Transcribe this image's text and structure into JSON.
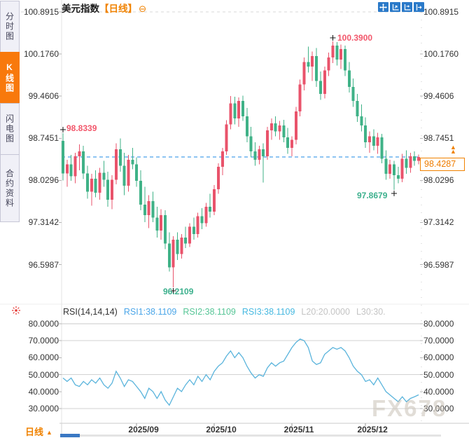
{
  "sidebar": {
    "items": [
      {
        "label": "分时图",
        "selected": false
      },
      {
        "label": "K线图",
        "selected": true
      },
      {
        "label": "闪电图",
        "selected": false
      },
      {
        "label": "合约资料",
        "selected": false
      }
    ]
  },
  "header": {
    "title": "美元指数",
    "timeframe_tag": "【日线】",
    "collapse_icon": "⊖"
  },
  "price_axis": {
    "current_price": "98.4287"
  },
  "annotations": {
    "left_high": "98.8339",
    "peak_high": "100.3900",
    "bottom_low": "96.2109",
    "right_low": "97.8679"
  },
  "rsi_legend": {
    "name": "RSI(14,14,14)",
    "rsi1": "RSI1:38.1109",
    "rsi2": "RSI2:38.1109",
    "rsi3": "RSI3:38.1109",
    "l20": "L20:20.0000",
    "l30": "L30:30."
  },
  "bottom_bar": {
    "timeframe_tab": "日线",
    "tab_arrow": "▲",
    "watermark": "FX678"
  },
  "colors": {
    "up": "#e9536b",
    "down": "#3fb287",
    "accent": "#f08200",
    "price_line": "#1e88e5",
    "rsi_line": "#5ab4dc",
    "grid": "#d2d2d2",
    "axis_text": "#333333"
  },
  "chart_data": [
    {
      "type": "candlestick",
      "title": "美元指数 日线 (US Dollar Index, daily)",
      "y_ticks": [
        100.8915,
        100.176,
        99.4606,
        98.7451,
        98.0296,
        97.3142,
        96.5987
      ],
      "ylim": [
        96.2109,
        100.8915
      ],
      "x_tick_labels": [
        "2025/09",
        "2025/10",
        "2025/11",
        "2025/12"
      ],
      "x_tick_indices": [
        18,
        37,
        56,
        74
      ],
      "current_price": 98.4287,
      "markers": [
        {
          "index": 0,
          "price": 98.8339,
          "side": "high"
        },
        {
          "index": 66,
          "price": 100.39,
          "side": "high"
        },
        {
          "index": 27,
          "price": 96.2109,
          "side": "low"
        },
        {
          "index": 81,
          "price": 97.8679,
          "side": "low"
        }
      ],
      "ohlc": [
        [
          98.7,
          98.8339,
          98.03,
          98.15
        ],
        [
          98.15,
          98.38,
          97.92,
          98.3
        ],
        [
          98.3,
          98.46,
          98.02,
          98.1
        ],
        [
          98.1,
          98.5,
          97.98,
          98.44
        ],
        [
          98.44,
          98.64,
          98.2,
          98.52
        ],
        [
          98.52,
          98.62,
          98.05,
          98.15
        ],
        [
          98.15,
          98.28,
          97.72,
          97.84
        ],
        [
          97.84,
          98.14,
          97.6,
          98.06
        ],
        [
          98.06,
          98.2,
          97.74,
          97.82
        ],
        [
          97.82,
          98.24,
          97.7,
          98.16
        ],
        [
          98.16,
          98.36,
          97.92,
          98.04
        ],
        [
          98.04,
          98.18,
          97.58,
          97.7
        ],
        [
          97.7,
          98.12,
          97.54,
          98.04
        ],
        [
          98.04,
          98.66,
          97.96,
          98.56
        ],
        [
          98.56,
          98.74,
          98.18,
          98.28
        ],
        [
          98.28,
          98.5,
          97.78,
          97.94
        ],
        [
          97.94,
          98.46,
          97.84,
          98.38
        ],
        [
          98.38,
          98.58,
          98.22,
          98.3
        ],
        [
          98.3,
          98.42,
          97.92,
          98.02
        ],
        [
          98.02,
          98.2,
          97.52,
          97.62
        ],
        [
          97.62,
          97.92,
          97.32,
          97.44
        ],
        [
          97.44,
          97.78,
          97.22,
          97.68
        ],
        [
          97.68,
          97.84,
          97.32,
          97.4
        ],
        [
          97.4,
          97.58,
          97.06,
          97.18
        ],
        [
          97.18,
          97.54,
          97.02,
          97.44
        ],
        [
          97.44,
          97.52,
          96.86,
          96.96
        ],
        [
          96.96,
          97.15,
          96.48,
          96.55
        ],
        [
          96.55,
          97.08,
          96.2109,
          97.02
        ],
        [
          97.02,
          97.15,
          96.68,
          96.78
        ],
        [
          96.78,
          97.12,
          96.7,
          97.06
        ],
        [
          97.06,
          97.24,
          96.88,
          96.96
        ],
        [
          96.96,
          97.3,
          96.9,
          97.24
        ],
        [
          97.24,
          97.4,
          97.02,
          97.12
        ],
        [
          97.12,
          97.48,
          97.06,
          97.42
        ],
        [
          97.42,
          97.56,
          97.2,
          97.3
        ],
        [
          97.3,
          97.65,
          97.24,
          97.58
        ],
        [
          97.58,
          97.8,
          97.4,
          97.5
        ],
        [
          97.5,
          97.95,
          97.44,
          97.88
        ],
        [
          97.88,
          98.32,
          97.8,
          98.26
        ],
        [
          98.26,
          98.58,
          98.12,
          98.52
        ],
        [
          98.52,
          99.05,
          98.46,
          98.98
        ],
        [
          98.98,
          99.46,
          98.9,
          99.34
        ],
        [
          99.34,
          99.45,
          98.98,
          99.08
        ],
        [
          99.08,
          99.44,
          98.94,
          99.38
        ],
        [
          99.38,
          99.47,
          99.04,
          99.12
        ],
        [
          99.12,
          99.26,
          98.68,
          98.78
        ],
        [
          98.78,
          98.94,
          98.42,
          98.52
        ],
        [
          98.52,
          98.68,
          98.28,
          98.38
        ],
        [
          98.38,
          98.62,
          98.3,
          98.56
        ],
        [
          98.56,
          98.66,
          97.99,
          98.44
        ],
        [
          98.44,
          98.94,
          98.38,
          98.88
        ],
        [
          98.88,
          99.08,
          98.72,
          99.0
        ],
        [
          99.0,
          99.12,
          98.78,
          98.86
        ],
        [
          98.86,
          99.04,
          98.72,
          98.96
        ],
        [
          98.96,
          99.06,
          98.68,
          98.76
        ],
        [
          98.76,
          98.92,
          98.48,
          98.58
        ],
        [
          98.58,
          98.78,
          98.44,
          98.72
        ],
        [
          98.72,
          99.28,
          98.64,
          99.2
        ],
        [
          99.2,
          99.74,
          99.12,
          99.66
        ],
        [
          99.66,
          100.12,
          99.56,
          100.04
        ],
        [
          100.04,
          100.3,
          99.86,
          99.96
        ],
        [
          99.96,
          100.22,
          99.72,
          100.14
        ],
        [
          100.14,
          100.28,
          99.62,
          99.72
        ],
        [
          99.72,
          99.88,
          99.4,
          99.5
        ],
        [
          99.5,
          99.96,
          99.42,
          99.9
        ],
        [
          99.9,
          100.2,
          99.8,
          100.12
        ],
        [
          100.12,
          100.39,
          100.02,
          100.32
        ],
        [
          100.32,
          100.38,
          99.98,
          100.08
        ],
        [
          100.08,
          100.34,
          99.92,
          100.26
        ],
        [
          100.26,
          100.32,
          99.8,
          99.9
        ],
        [
          99.9,
          100.04,
          99.52,
          99.62
        ],
        [
          99.62,
          99.76,
          99.28,
          99.38
        ],
        [
          99.38,
          99.5,
          99.02,
          99.12
        ],
        [
          99.12,
          99.32,
          98.86,
          98.96
        ],
        [
          98.96,
          99.1,
          98.58,
          98.68
        ],
        [
          98.68,
          98.86,
          98.5,
          98.78
        ],
        [
          98.78,
          98.9,
          98.54,
          98.62
        ],
        [
          98.62,
          98.84,
          98.48,
          98.76
        ],
        [
          98.76,
          98.82,
          98.32,
          98.4
        ],
        [
          98.4,
          98.54,
          98.04,
          98.14
        ],
        [
          98.14,
          98.38,
          98.06,
          98.3
        ],
        [
          98.3,
          98.36,
          97.8679,
          98.12
        ],
        [
          98.12,
          98.26,
          97.98,
          98.06
        ],
        [
          98.06,
          98.48,
          98.0,
          98.4
        ],
        [
          98.4,
          98.54,
          98.14,
          98.24
        ],
        [
          98.24,
          98.5,
          98.16,
          98.44
        ],
        [
          98.44,
          98.52,
          98.28,
          98.36
        ],
        [
          98.36,
          98.47,
          98.3,
          98.4287
        ]
      ]
    },
    {
      "type": "line",
      "name": "RSI(14,14,14)",
      "note": "RSI1, RSI2 and RSI3 overlap at 38.1109 — one visible line",
      "y_ticks": [
        80,
        70,
        60,
        50,
        40,
        30
      ],
      "ylim": [
        28,
        82
      ],
      "levels": {
        "L20": 20,
        "L30": 30
      },
      "series": [
        {
          "name": "RSI1",
          "values": [
            48,
            46,
            48,
            44,
            43,
            46,
            44,
            47,
            45,
            48,
            44,
            42,
            45,
            52,
            48,
            43,
            47,
            46,
            43,
            40,
            36,
            42,
            40,
            36,
            40,
            35,
            32,
            37,
            42,
            40,
            44,
            47,
            44,
            49,
            46,
            50,
            47,
            52,
            55,
            57,
            61,
            64,
            60,
            63,
            60,
            55,
            51,
            48,
            50,
            49,
            54,
            57,
            55,
            57,
            58,
            62,
            66,
            69,
            71,
            70,
            66,
            58,
            56,
            57,
            62,
            64,
            66,
            65,
            66,
            64,
            60,
            55,
            52,
            50,
            46,
            47,
            44,
            48,
            44,
            40,
            38,
            36,
            34,
            37,
            34,
            36,
            37,
            38.11
          ]
        }
      ]
    }
  ]
}
